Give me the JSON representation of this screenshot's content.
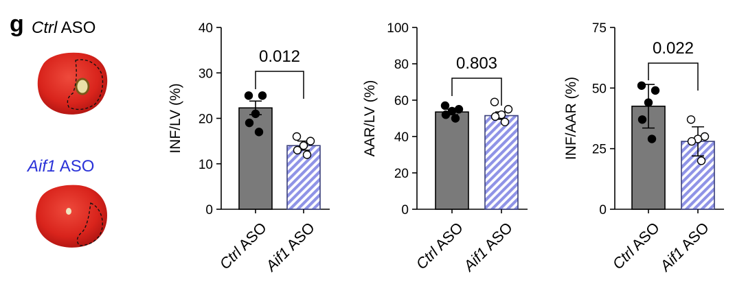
{
  "panel_label": "g",
  "groups": {
    "ctrl": {
      "italic": "Ctrl",
      "rest": " ASO",
      "color": "#000000"
    },
    "aif1": {
      "italic": "Aif1",
      "rest": " ASO",
      "color": "#2a32d8"
    }
  },
  "colors": {
    "ctrl_bar": "#7a7a7a",
    "aif1_hatch": "#8f93e6",
    "aif1_stroke": "#3a3f7a"
  },
  "icons": {
    "heart_ctrl": "heart-section-ctrl-image",
    "heart_aif1": "heart-section-aif1-image"
  },
  "chart_data": [
    {
      "type": "bar",
      "ylabel": "INF/LV (%)",
      "ylim": [
        0,
        40
      ],
      "yticks": [
        0,
        10,
        20,
        30,
        40
      ],
      "categories": [
        "Ctrl ASO",
        "Aif1 ASO"
      ],
      "values": [
        22.3,
        14.0
      ],
      "error": [
        1.5,
        1.0
      ],
      "points": [
        [
          25,
          25,
          21,
          19,
          17
        ],
        [
          16,
          15,
          14,
          13,
          12
        ]
      ],
      "pvalue": "0.012"
    },
    {
      "type": "bar",
      "ylabel": "AAR/LV (%)",
      "ylim": [
        0,
        100
      ],
      "yticks": [
        0,
        20,
        40,
        60,
        80,
        100
      ],
      "categories": [
        "Ctrl ASO",
        "Aif1 ASO"
      ],
      "values": [
        53.5,
        51.5
      ],
      "error": [
        1.5,
        2.0
      ],
      "points": [
        [
          57,
          55,
          54,
          52,
          50
        ],
        [
          59,
          55,
          52,
          51,
          48
        ]
      ],
      "pvalue": "0.803"
    },
    {
      "type": "bar",
      "ylabel": "INF/AAR (%)",
      "ylim": [
        0,
        75
      ],
      "yticks": [
        0,
        25,
        50,
        75
      ],
      "categories": [
        "Ctrl ASO",
        "Aif1 ASO"
      ],
      "values": [
        42.5,
        28.0
      ],
      "error": [
        9.0,
        6.0
      ],
      "points": [
        [
          51,
          49,
          44,
          37,
          29
        ],
        [
          37,
          30,
          29,
          28,
          20
        ]
      ],
      "pvalue": "0.022"
    }
  ]
}
